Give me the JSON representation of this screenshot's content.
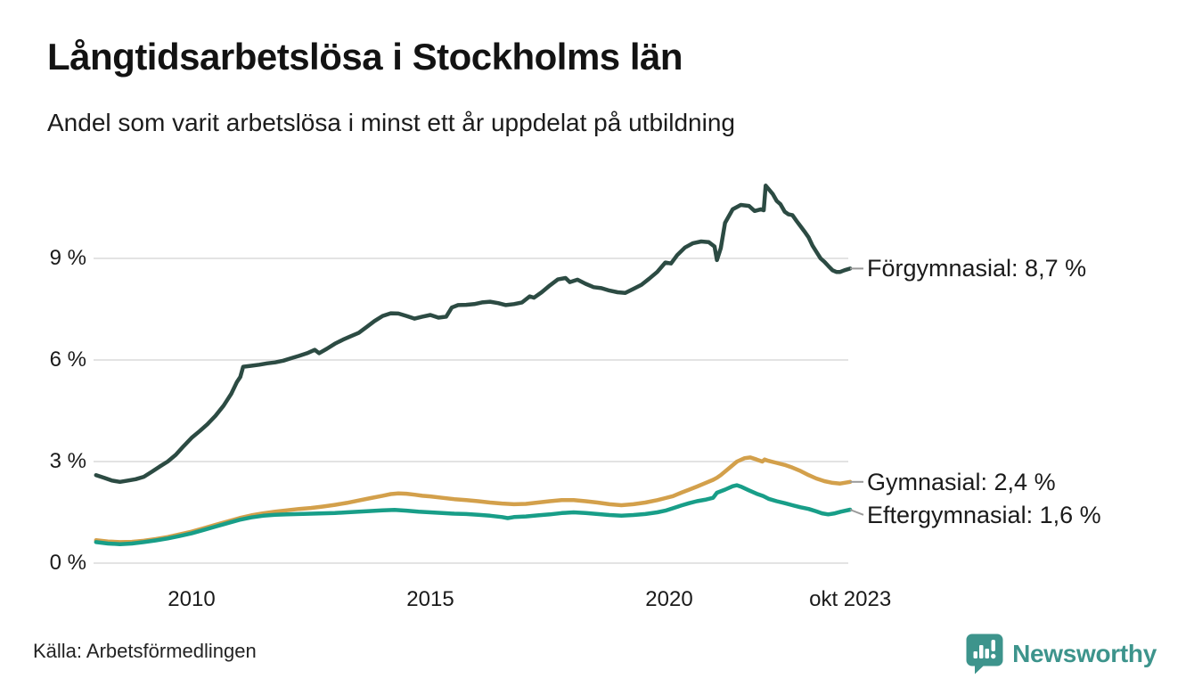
{
  "header": {
    "title": "Långtidsarbetslösa i Stockholms län",
    "subtitle": "Andel som varit arbetslösa i minst ett år uppdelat på utbildning"
  },
  "footer": {
    "source": "Källa: Arbetsförmedlingen",
    "brand": "Newsworthy"
  },
  "colors": {
    "forgymnasial": "#2c4b43",
    "gymnasial": "#d3a04b",
    "eftergymnasial": "#189e88",
    "grid": "#e3e3e3",
    "connector": "#9a9a9a",
    "axis_text": "#1a1a1a",
    "brand_teal": "#3d948c"
  },
  "chart_data": {
    "type": "line",
    "title": "Långtidsarbetslösa i Stockholms län",
    "subtitle": "Andel som varit arbetslösa i minst ett år uppdelat på utbildning",
    "unit": "%",
    "grid": "horizontal",
    "legend_position": "right-end-labels",
    "x_range": [
      2008.0,
      2023.79
    ],
    "ylim": [
      0,
      11.5
    ],
    "y_ticks": [
      {
        "value": 0,
        "label": "0 %"
      },
      {
        "value": 3,
        "label": "3 %"
      },
      {
        "value": 6,
        "label": "6 %"
      },
      {
        "value": 9,
        "label": "9 %"
      }
    ],
    "x_ticks": [
      {
        "year": 2010,
        "label": "2010"
      },
      {
        "year": 2015,
        "label": "2015"
      },
      {
        "year": 2020,
        "label": "2020"
      },
      {
        "year": 2023.79,
        "label": "okt 2023"
      }
    ],
    "series": [
      {
        "name": "Förgymnasial",
        "slug": "forgymnasial",
        "end_label": "Förgymnasial: 8,7 %",
        "end_value": 8.7,
        "color": "#2c4b43",
        "points": [
          [
            2008.0,
            2.6
          ],
          [
            2008.17,
            2.52
          ],
          [
            2008.33,
            2.44
          ],
          [
            2008.5,
            2.4
          ],
          [
            2008.67,
            2.44
          ],
          [
            2008.83,
            2.48
          ],
          [
            2009.0,
            2.55
          ],
          [
            2009.17,
            2.7
          ],
          [
            2009.33,
            2.85
          ],
          [
            2009.5,
            3.0
          ],
          [
            2009.67,
            3.2
          ],
          [
            2009.83,
            3.45
          ],
          [
            2010.0,
            3.7
          ],
          [
            2010.17,
            3.9
          ],
          [
            2010.33,
            4.1
          ],
          [
            2010.5,
            4.35
          ],
          [
            2010.67,
            4.65
          ],
          [
            2010.83,
            5.0
          ],
          [
            2010.95,
            5.35
          ],
          [
            2011.02,
            5.5
          ],
          [
            2011.08,
            5.8
          ],
          [
            2011.25,
            5.83
          ],
          [
            2011.42,
            5.86
          ],
          [
            2011.58,
            5.9
          ],
          [
            2011.75,
            5.93
          ],
          [
            2011.92,
            5.98
          ],
          [
            2012.08,
            6.05
          ],
          [
            2012.25,
            6.12
          ],
          [
            2012.42,
            6.2
          ],
          [
            2012.58,
            6.3
          ],
          [
            2012.67,
            6.2
          ],
          [
            2012.83,
            6.33
          ],
          [
            2013.0,
            6.48
          ],
          [
            2013.17,
            6.6
          ],
          [
            2013.33,
            6.7
          ],
          [
            2013.5,
            6.8
          ],
          [
            2013.67,
            6.98
          ],
          [
            2013.83,
            7.15
          ],
          [
            2014.0,
            7.3
          ],
          [
            2014.17,
            7.38
          ],
          [
            2014.33,
            7.37
          ],
          [
            2014.5,
            7.3
          ],
          [
            2014.67,
            7.22
          ],
          [
            2014.83,
            7.28
          ],
          [
            2015.0,
            7.33
          ],
          [
            2015.17,
            7.25
          ],
          [
            2015.33,
            7.28
          ],
          [
            2015.45,
            7.55
          ],
          [
            2015.58,
            7.62
          ],
          [
            2015.75,
            7.63
          ],
          [
            2015.92,
            7.65
          ],
          [
            2016.08,
            7.7
          ],
          [
            2016.25,
            7.72
          ],
          [
            2016.42,
            7.68
          ],
          [
            2016.58,
            7.62
          ],
          [
            2016.75,
            7.65
          ],
          [
            2016.92,
            7.7
          ],
          [
            2017.08,
            7.88
          ],
          [
            2017.17,
            7.84
          ],
          [
            2017.33,
            8.0
          ],
          [
            2017.5,
            8.2
          ],
          [
            2017.67,
            8.38
          ],
          [
            2017.83,
            8.42
          ],
          [
            2017.92,
            8.3
          ],
          [
            2018.08,
            8.37
          ],
          [
            2018.25,
            8.25
          ],
          [
            2018.42,
            8.15
          ],
          [
            2018.58,
            8.12
          ],
          [
            2018.75,
            8.05
          ],
          [
            2018.92,
            8.0
          ],
          [
            2019.08,
            7.98
          ],
          [
            2019.25,
            8.1
          ],
          [
            2019.42,
            8.22
          ],
          [
            2019.58,
            8.4
          ],
          [
            2019.75,
            8.6
          ],
          [
            2019.92,
            8.88
          ],
          [
            2020.04,
            8.85
          ],
          [
            2020.17,
            9.1
          ],
          [
            2020.33,
            9.32
          ],
          [
            2020.5,
            9.45
          ],
          [
            2020.67,
            9.5
          ],
          [
            2020.83,
            9.48
          ],
          [
            2020.95,
            9.35
          ],
          [
            2021.0,
            8.95
          ],
          [
            2021.08,
            9.3
          ],
          [
            2021.17,
            10.05
          ],
          [
            2021.33,
            10.45
          ],
          [
            2021.5,
            10.58
          ],
          [
            2021.67,
            10.55
          ],
          [
            2021.79,
            10.4
          ],
          [
            2021.92,
            10.45
          ],
          [
            2021.98,
            10.42
          ],
          [
            2022.02,
            11.15
          ],
          [
            2022.08,
            11.05
          ],
          [
            2022.17,
            10.9
          ],
          [
            2022.25,
            10.7
          ],
          [
            2022.33,
            10.6
          ],
          [
            2022.42,
            10.38
          ],
          [
            2022.5,
            10.3
          ],
          [
            2022.58,
            10.28
          ],
          [
            2022.67,
            10.1
          ],
          [
            2022.75,
            9.95
          ],
          [
            2022.83,
            9.8
          ],
          [
            2022.92,
            9.62
          ],
          [
            2023.0,
            9.38
          ],
          [
            2023.08,
            9.2
          ],
          [
            2023.17,
            9.0
          ],
          [
            2023.25,
            8.9
          ],
          [
            2023.33,
            8.78
          ],
          [
            2023.42,
            8.65
          ],
          [
            2023.5,
            8.6
          ],
          [
            2023.58,
            8.6
          ],
          [
            2023.67,
            8.65
          ],
          [
            2023.79,
            8.7
          ]
        ]
      },
      {
        "name": "Gymnasial",
        "slug": "gymnasial",
        "end_label": "Gymnasial: 2,4 %",
        "end_value": 2.4,
        "color": "#d3a04b",
        "points": [
          [
            2008.0,
            0.68
          ],
          [
            2008.25,
            0.64
          ],
          [
            2008.5,
            0.62
          ],
          [
            2008.75,
            0.63
          ],
          [
            2009.0,
            0.66
          ],
          [
            2009.25,
            0.71
          ],
          [
            2009.5,
            0.77
          ],
          [
            2009.75,
            0.85
          ],
          [
            2010.0,
            0.93
          ],
          [
            2010.25,
            1.03
          ],
          [
            2010.5,
            1.13
          ],
          [
            2010.75,
            1.23
          ],
          [
            2011.0,
            1.33
          ],
          [
            2011.25,
            1.41
          ],
          [
            2011.5,
            1.47
          ],
          [
            2011.75,
            1.52
          ],
          [
            2012.0,
            1.56
          ],
          [
            2012.25,
            1.6
          ],
          [
            2012.5,
            1.63
          ],
          [
            2012.75,
            1.67
          ],
          [
            2013.0,
            1.72
          ],
          [
            2013.25,
            1.78
          ],
          [
            2013.5,
            1.85
          ],
          [
            2013.75,
            1.92
          ],
          [
            2014.0,
            1.99
          ],
          [
            2014.17,
            2.04
          ],
          [
            2014.33,
            2.06
          ],
          [
            2014.5,
            2.05
          ],
          [
            2014.67,
            2.02
          ],
          [
            2014.83,
            1.99
          ],
          [
            2015.0,
            1.97
          ],
          [
            2015.25,
            1.93
          ],
          [
            2015.5,
            1.89
          ],
          [
            2015.75,
            1.86
          ],
          [
            2016.0,
            1.83
          ],
          [
            2016.25,
            1.79
          ],
          [
            2016.5,
            1.76
          ],
          [
            2016.75,
            1.74
          ],
          [
            2017.0,
            1.75
          ],
          [
            2017.25,
            1.79
          ],
          [
            2017.5,
            1.83
          ],
          [
            2017.75,
            1.86
          ],
          [
            2018.0,
            1.86
          ],
          [
            2018.25,
            1.83
          ],
          [
            2018.5,
            1.79
          ],
          [
            2018.75,
            1.74
          ],
          [
            2019.0,
            1.71
          ],
          [
            2019.25,
            1.74
          ],
          [
            2019.5,
            1.79
          ],
          [
            2019.75,
            1.86
          ],
          [
            2019.92,
            1.92
          ],
          [
            2020.08,
            1.98
          ],
          [
            2020.25,
            2.08
          ],
          [
            2020.42,
            2.17
          ],
          [
            2020.58,
            2.26
          ],
          [
            2020.75,
            2.36
          ],
          [
            2020.92,
            2.46
          ],
          [
            2021.0,
            2.52
          ],
          [
            2021.08,
            2.6
          ],
          [
            2021.25,
            2.8
          ],
          [
            2021.42,
            3.0
          ],
          [
            2021.58,
            3.1
          ],
          [
            2021.7,
            3.12
          ],
          [
            2021.83,
            3.06
          ],
          [
            2021.95,
            3.0
          ],
          [
            2022.0,
            3.06
          ],
          [
            2022.08,
            3.02
          ],
          [
            2022.25,
            2.96
          ],
          [
            2022.42,
            2.9
          ],
          [
            2022.58,
            2.82
          ],
          [
            2022.75,
            2.72
          ],
          [
            2022.92,
            2.6
          ],
          [
            2023.08,
            2.5
          ],
          [
            2023.25,
            2.42
          ],
          [
            2023.42,
            2.37
          ],
          [
            2023.58,
            2.35
          ],
          [
            2023.79,
            2.4
          ]
        ]
      },
      {
        "name": "Eftergymnasial",
        "slug": "eftergymnasial",
        "end_label": "Eftergymnasial: 1,6 %",
        "end_value": 1.6,
        "color": "#189e88",
        "points": [
          [
            2008.0,
            0.62
          ],
          [
            2008.25,
            0.58
          ],
          [
            2008.5,
            0.56
          ],
          [
            2008.75,
            0.58
          ],
          [
            2009.0,
            0.62
          ],
          [
            2009.25,
            0.67
          ],
          [
            2009.5,
            0.73
          ],
          [
            2009.75,
            0.8
          ],
          [
            2010.0,
            0.88
          ],
          [
            2010.25,
            0.98
          ],
          [
            2010.5,
            1.08
          ],
          [
            2010.75,
            1.18
          ],
          [
            2011.0,
            1.28
          ],
          [
            2011.25,
            1.35
          ],
          [
            2011.5,
            1.4
          ],
          [
            2011.75,
            1.43
          ],
          [
            2012.0,
            1.44
          ],
          [
            2012.25,
            1.45
          ],
          [
            2012.5,
            1.46
          ],
          [
            2012.75,
            1.47
          ],
          [
            2013.0,
            1.48
          ],
          [
            2013.25,
            1.5
          ],
          [
            2013.5,
            1.52
          ],
          [
            2013.75,
            1.54
          ],
          [
            2014.0,
            1.56
          ],
          [
            2014.25,
            1.57
          ],
          [
            2014.5,
            1.55
          ],
          [
            2014.75,
            1.52
          ],
          [
            2015.0,
            1.5
          ],
          [
            2015.25,
            1.48
          ],
          [
            2015.5,
            1.46
          ],
          [
            2015.75,
            1.45
          ],
          [
            2016.0,
            1.43
          ],
          [
            2016.25,
            1.4
          ],
          [
            2016.5,
            1.36
          ],
          [
            2016.62,
            1.33
          ],
          [
            2016.75,
            1.36
          ],
          [
            2017.0,
            1.38
          ],
          [
            2017.25,
            1.41
          ],
          [
            2017.5,
            1.44
          ],
          [
            2017.75,
            1.48
          ],
          [
            2018.0,
            1.5
          ],
          [
            2018.25,
            1.48
          ],
          [
            2018.5,
            1.45
          ],
          [
            2018.75,
            1.42
          ],
          [
            2019.0,
            1.4
          ],
          [
            2019.25,
            1.42
          ],
          [
            2019.5,
            1.45
          ],
          [
            2019.75,
            1.5
          ],
          [
            2019.92,
            1.55
          ],
          [
            2020.08,
            1.62
          ],
          [
            2020.25,
            1.7
          ],
          [
            2020.42,
            1.77
          ],
          [
            2020.58,
            1.83
          ],
          [
            2020.75,
            1.87
          ],
          [
            2020.92,
            1.93
          ],
          [
            2021.0,
            2.08
          ],
          [
            2021.17,
            2.17
          ],
          [
            2021.33,
            2.27
          ],
          [
            2021.42,
            2.3
          ],
          [
            2021.5,
            2.26
          ],
          [
            2021.67,
            2.15
          ],
          [
            2021.83,
            2.05
          ],
          [
            2021.97,
            1.98
          ],
          [
            2022.08,
            1.9
          ],
          [
            2022.25,
            1.83
          ],
          [
            2022.42,
            1.77
          ],
          [
            2022.58,
            1.71
          ],
          [
            2022.75,
            1.65
          ],
          [
            2022.92,
            1.6
          ],
          [
            2023.08,
            1.53
          ],
          [
            2023.2,
            1.47
          ],
          [
            2023.33,
            1.44
          ],
          [
            2023.47,
            1.47
          ],
          [
            2023.6,
            1.52
          ],
          [
            2023.79,
            1.58
          ]
        ]
      }
    ]
  }
}
